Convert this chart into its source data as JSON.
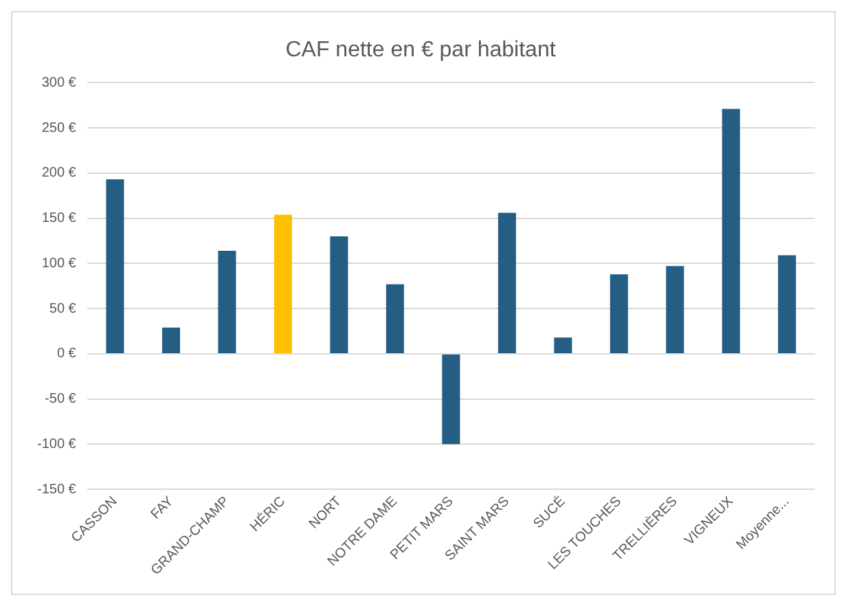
{
  "chart_data": {
    "type": "bar",
    "title": "CAF nette en € par habitant",
    "categories": [
      "CASSON",
      "FAY",
      "GRAND-CHAMP",
      "HÉRIC",
      "NORT",
      "NOTRE DAME",
      "PETIT MARS",
      "SAINT MARS",
      "SUCÉ",
      "LES TOUCHES",
      "TRELLIÈRES",
      "VIGNEUX",
      "Moyenne..."
    ],
    "values": [
      193,
      29,
      114,
      154,
      130,
      77,
      -100,
      156,
      18,
      88,
      97,
      271,
      109
    ],
    "colors": [
      "#255e85",
      "#255e85",
      "#255e85",
      "#ffc000",
      "#255e85",
      "#255e85",
      "#255e85",
      "#255e85",
      "#255e85",
      "#255e85",
      "#255e85",
      "#255e85",
      "#255e85"
    ],
    "ylim": [
      -150,
      300
    ],
    "yticks": [
      {
        "value": -150,
        "label": "-150 €"
      },
      {
        "value": -100,
        "label": "-100 €"
      },
      {
        "value": -50,
        "label": "-50 €"
      },
      {
        "value": 0,
        "label": "0 €"
      },
      {
        "value": 50,
        "label": "50 €"
      },
      {
        "value": 100,
        "label": "100 €"
      },
      {
        "value": 150,
        "label": "150 €"
      },
      {
        "value": 200,
        "label": "200 €"
      },
      {
        "value": 250,
        "label": "250 €"
      },
      {
        "value": 300,
        "label": "300 €"
      }
    ],
    "grid": "y",
    "legend": false
  }
}
